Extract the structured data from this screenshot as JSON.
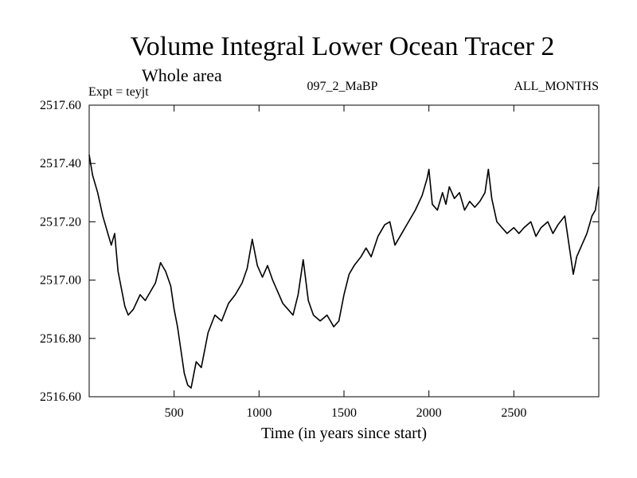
{
  "chart_data": {
    "type": "line",
    "title": "Volume Integral Lower Ocean Tracer 2",
    "subtitle": "Whole area",
    "experiment": "Expt = teyjt",
    "run_label": "097_2_MaBP",
    "months_label": "ALL_MONTHS",
    "xlabel": "Time (in years since start)",
    "ylabel": "",
    "xlim": [
      0,
      3000
    ],
    "ylim": [
      2516.6,
      2517.6
    ],
    "x_ticks": [
      500,
      1000,
      1500,
      2000,
      2500
    ],
    "x_tick_labels": [
      "500",
      "1000",
      "1500",
      "2000",
      "2500"
    ],
    "y_ticks": [
      2516.6,
      2516.8,
      2517.0,
      2517.2,
      2517.4,
      2517.6
    ],
    "y_tick_labels": [
      "2516.60",
      "2516.80",
      "2517.00",
      "2517.20",
      "2517.40",
      "2517.60"
    ],
    "grid": false,
    "series": [
      {
        "name": "Lower Ocean Tracer 2",
        "color": "#000000",
        "x": [
          0,
          20,
          50,
          80,
          100,
          130,
          150,
          170,
          190,
          200,
          210,
          230,
          260,
          300,
          330,
          360,
          390,
          420,
          450,
          480,
          500,
          520,
          540,
          560,
          580,
          600,
          630,
          660,
          700,
          740,
          780,
          820,
          860,
          900,
          930,
          960,
          990,
          1020,
          1050,
          1080,
          1110,
          1140,
          1170,
          1200,
          1230,
          1260,
          1290,
          1320,
          1360,
          1400,
          1440,
          1470,
          1500,
          1530,
          1560,
          1600,
          1630,
          1660,
          1700,
          1740,
          1770,
          1800,
          1840,
          1880,
          1920,
          1960,
          1990,
          2000,
          2020,
          2050,
          2080,
          2100,
          2120,
          2150,
          2180,
          2210,
          2240,
          2270,
          2300,
          2330,
          2350,
          2370,
          2400,
          2430,
          2460,
          2500,
          2530,
          2560,
          2600,
          2630,
          2660,
          2700,
          2730,
          2760,
          2800,
          2830,
          2850,
          2870,
          2900,
          2930,
          2960,
          2980,
          3000
        ],
        "y": [
          2517.43,
          2517.36,
          2517.3,
          2517.22,
          2517.18,
          2517.12,
          2517.16,
          2517.03,
          2516.97,
          2516.94,
          2516.91,
          2516.88,
          2516.9,
          2516.95,
          2516.93,
          2516.96,
          2516.99,
          2517.06,
          2517.03,
          2516.98,
          2516.9,
          2516.84,
          2516.76,
          2516.68,
          2516.64,
          2516.63,
          2516.72,
          2516.7,
          2516.82,
          2516.88,
          2516.86,
          2516.92,
          2516.95,
          2516.99,
          2517.04,
          2517.14,
          2517.05,
          2517.01,
          2517.05,
          2517.0,
          2516.96,
          2516.92,
          2516.9,
          2516.88,
          2516.95,
          2517.07,
          2516.93,
          2516.88,
          2516.86,
          2516.88,
          2516.84,
          2516.86,
          2516.95,
          2517.02,
          2517.05,
          2517.08,
          2517.11,
          2517.08,
          2517.15,
          2517.19,
          2517.2,
          2517.12,
          2517.16,
          2517.2,
          2517.24,
          2517.29,
          2517.35,
          2517.38,
          2517.26,
          2517.24,
          2517.3,
          2517.26,
          2517.32,
          2517.28,
          2517.3,
          2517.24,
          2517.27,
          2517.25,
          2517.27,
          2517.3,
          2517.38,
          2517.28,
          2517.2,
          2517.18,
          2517.16,
          2517.18,
          2517.16,
          2517.18,
          2517.2,
          2517.15,
          2517.18,
          2517.2,
          2517.16,
          2517.19,
          2517.22,
          2517.1,
          2517.02,
          2517.08,
          2517.12,
          2517.16,
          2517.22,
          2517.24,
          2517.32
        ]
      }
    ]
  }
}
